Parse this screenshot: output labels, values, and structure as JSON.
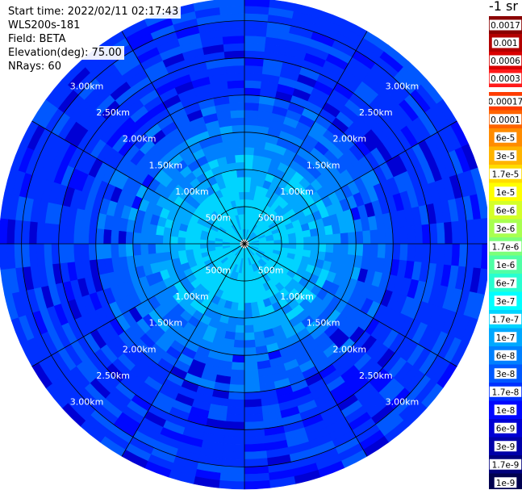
{
  "info": {
    "start_time": "Start time: 2022/02/11 02:17:43",
    "instrument": "WLS200s-181",
    "field": "Field: BETA",
    "elevation": "Elevation(deg): 75.00",
    "nrays": "NRays: 60"
  },
  "unit_label": "-1 sr",
  "colors": {
    "background": "#ffffff",
    "grid": "#000000"
  },
  "chart_data": {
    "type": "heatmap",
    "projection": "polar",
    "field": "BETA",
    "instrument": "WLS200s-181",
    "start_time": "2022/02/11 02:17:43",
    "elevation_deg": 75.0,
    "n_rays": 60,
    "range_max_m": 3300,
    "range_rings_m": [
      500,
      1000,
      1500,
      2000,
      2500,
      3000
    ],
    "ring_labels": [
      "500m",
      "1.00km",
      "1.50km",
      "2.00km",
      "2.50km",
      "3.00km"
    ],
    "spokes_deg": [
      0,
      30,
      60,
      90,
      120,
      150,
      180,
      210,
      240,
      270,
      300,
      330
    ],
    "label_angles_deg": [
      45,
      135,
      225,
      315
    ],
    "radial_profile": [
      {
        "range_m": 150,
        "value": "1.7e-7"
      },
      {
        "range_m": 500,
        "value": "1.7e-7"
      },
      {
        "range_m": 800,
        "value": "1e-7"
      },
      {
        "range_m": 1200,
        "value": "6e-8"
      },
      {
        "range_m": 1600,
        "value": "3e-8"
      },
      {
        "range_m": 2000,
        "value": "1.7e-8"
      },
      {
        "range_m": 2500,
        "value": "1.7e-8"
      },
      {
        "range_m": 3300,
        "value": "1.7e-8"
      }
    ],
    "colorbar": {
      "top_group": [
        {
          "label": "0.0017",
          "color": "#8a0000"
        },
        {
          "label": "0.001",
          "color": "#b30000"
        },
        {
          "label": "0.0006",
          "color": "#d90000"
        },
        {
          "label": "0.0003",
          "color": "#ff1a1a"
        }
      ],
      "main_group": [
        {
          "label": "0.00017",
          "color": "#ff3c00"
        },
        {
          "label": "0.0001",
          "color": "#ff6400"
        },
        {
          "label": "6e-5",
          "color": "#ff8c00"
        },
        {
          "label": "3e-5",
          "color": "#ffb400"
        },
        {
          "label": "1.7e-5",
          "color": "#ffdc00"
        },
        {
          "label": "1e-5",
          "color": "#ffff00"
        },
        {
          "label": "6e-6",
          "color": "#d4ff28"
        },
        {
          "label": "3e-6",
          "color": "#a8ff50"
        },
        {
          "label": "1.7e-6",
          "color": "#7cff7a"
        },
        {
          "label": "1e-6",
          "color": "#50ffa5"
        },
        {
          "label": "6e-7",
          "color": "#28ffd0"
        },
        {
          "label": "3e-7",
          "color": "#00ffff"
        },
        {
          "label": "1.7e-7",
          "color": "#00d4ff"
        },
        {
          "label": "1e-7",
          "color": "#00a8ff"
        },
        {
          "label": "6e-8",
          "color": "#0080ff"
        },
        {
          "label": "3e-8",
          "color": "#0058ff"
        },
        {
          "label": "1.7e-8",
          "color": "#0030ff"
        },
        {
          "label": "1e-8",
          "color": "#0008ff"
        },
        {
          "label": "6e-9",
          "color": "#0000d4"
        },
        {
          "label": "3e-9",
          "color": "#0000a8"
        },
        {
          "label": "1.7e-9",
          "color": "#00007c"
        },
        {
          "label": "1e-9",
          "color": "#000050"
        }
      ]
    }
  }
}
